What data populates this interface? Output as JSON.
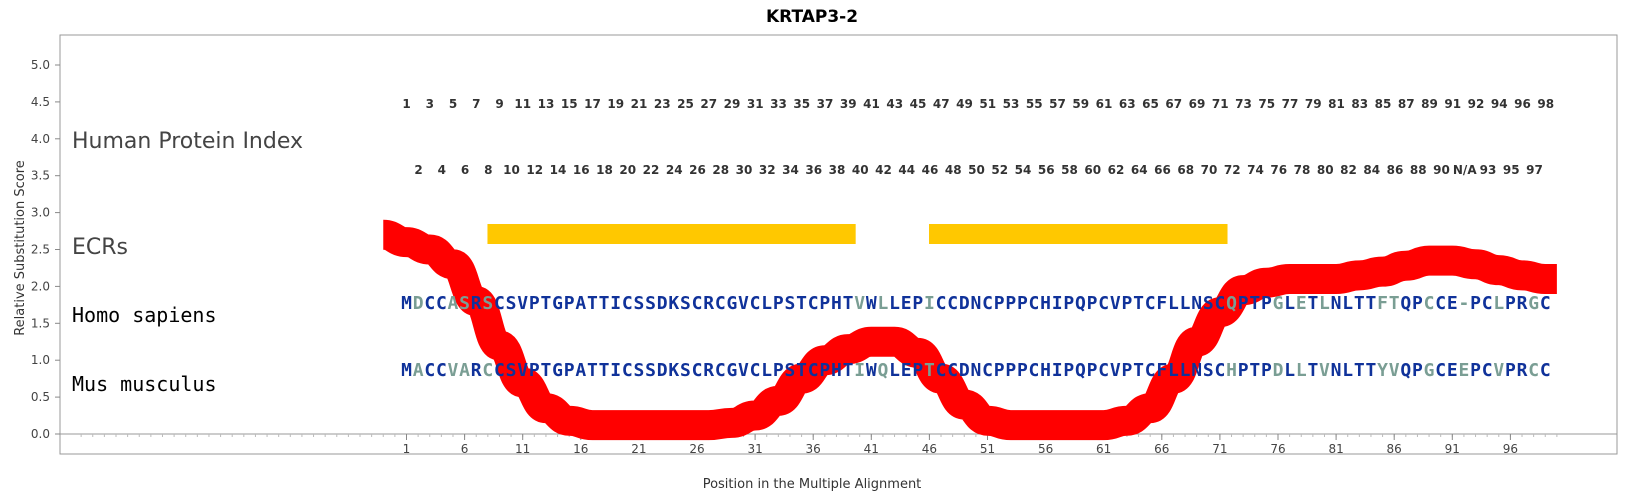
{
  "chart_data": {
    "type": "line",
    "title": "KRTAP3-2",
    "xlabel": "Position in the Multiple Alignment",
    "ylabel": "Relative Substitution Score",
    "ylim": [
      0,
      5.3
    ],
    "xlim": [
      -27,
      100
    ],
    "y_ticks": [
      "0.0",
      "0.5",
      "1.0",
      "1.5",
      "2.0",
      "2.5",
      "3.0",
      "3.5",
      "4.0",
      "4.5",
      "5.0"
    ],
    "x_ticks": [
      "1",
      "6",
      "11",
      "16",
      "21",
      "26",
      "31",
      "36",
      "41",
      "46",
      "51",
      "56",
      "61",
      "66",
      "71",
      "76",
      "81",
      "86",
      "91",
      "96"
    ],
    "grid": false,
    "row_labels": {
      "index": "Human Protein Index",
      "ecrs": "ECRs",
      "human": "Homo sapiens",
      "mouse": "Mus musculus"
    },
    "protein_index_top": [
      "1",
      "3",
      "5",
      "7",
      "9",
      "11",
      "13",
      "15",
      "17",
      "19",
      "21",
      "23",
      "25",
      "27",
      "29",
      "31",
      "33",
      "35",
      "37",
      "39",
      "41",
      "43",
      "45",
      "47",
      "49",
      "51",
      "53",
      "55",
      "57",
      "59",
      "61",
      "63",
      "65",
      "67",
      "69",
      "71",
      "73",
      "75",
      "77",
      "79",
      "81",
      "83",
      "85",
      "87",
      "89",
      "91",
      "92",
      "94",
      "96",
      "98"
    ],
    "protein_index_bottom": [
      "2",
      "4",
      "6",
      "8",
      "10",
      "12",
      "14",
      "16",
      "18",
      "20",
      "22",
      "24",
      "26",
      "28",
      "30",
      "32",
      "34",
      "36",
      "38",
      "40",
      "42",
      "44",
      "46",
      "48",
      "50",
      "52",
      "54",
      "56",
      "58",
      "60",
      "62",
      "64",
      "66",
      "68",
      "70",
      "72",
      "74",
      "76",
      "78",
      "80",
      "82",
      "84",
      "86",
      "88",
      "90",
      "N/A",
      "93",
      "95",
      "97"
    ],
    "ecrs": [
      {
        "start": 9,
        "end": 40
      },
      {
        "start": 47,
        "end": 72
      }
    ],
    "ecr_color": "#FFC800",
    "curve_color": "#FF0000",
    "series": [
      {
        "x": [
          -1,
          1,
          3,
          5,
          7,
          9,
          11,
          13,
          15,
          17,
          19,
          21,
          23,
          25,
          27,
          29,
          31,
          33,
          35,
          37,
          39,
          41,
          43,
          45,
          47,
          49,
          51,
          53,
          55,
          57,
          59,
          61,
          63,
          65,
          67,
          69,
          71,
          73,
          75,
          77,
          79,
          81,
          83,
          85,
          87,
          89,
          91,
          93,
          95,
          97,
          99,
          100
        ],
        "values": [
          2.7,
          2.6,
          2.5,
          2.3,
          1.8,
          1.2,
          0.7,
          0.35,
          0.18,
          0.12,
          0.12,
          0.12,
          0.12,
          0.12,
          0.12,
          0.15,
          0.25,
          0.45,
          0.75,
          1.0,
          1.15,
          1.25,
          1.25,
          1.1,
          0.75,
          0.4,
          0.18,
          0.12,
          0.12,
          0.12,
          0.12,
          0.12,
          0.18,
          0.35,
          0.75,
          1.25,
          1.65,
          1.95,
          2.05,
          2.1,
          2.1,
          2.1,
          2.15,
          2.2,
          2.28,
          2.35,
          2.35,
          2.3,
          2.22,
          2.15,
          2.1,
          2.1
        ]
      }
    ],
    "human_seq": "MDCCASRSCSVPTGPATTICSSDKSCRCGVCLPSTCPHTVWLLEPICCDNCPPPCHIPQPCVPTCFLLNSCQPTPGLETLNLTTFTQPCCE-PCLPRGC",
    "mouse_seq": "MACCVARCCSVPTGPATTICSSDKSCRCGVCLPSTCPHTIWQLEPTCCDNCPPPCHIPQPCVPTCFLLNSCHPTPDLLTVNLTTYVQPGCEEPCVPRCC",
    "conserved_color": "#10329A",
    "variable_color": "#7A9E94"
  }
}
